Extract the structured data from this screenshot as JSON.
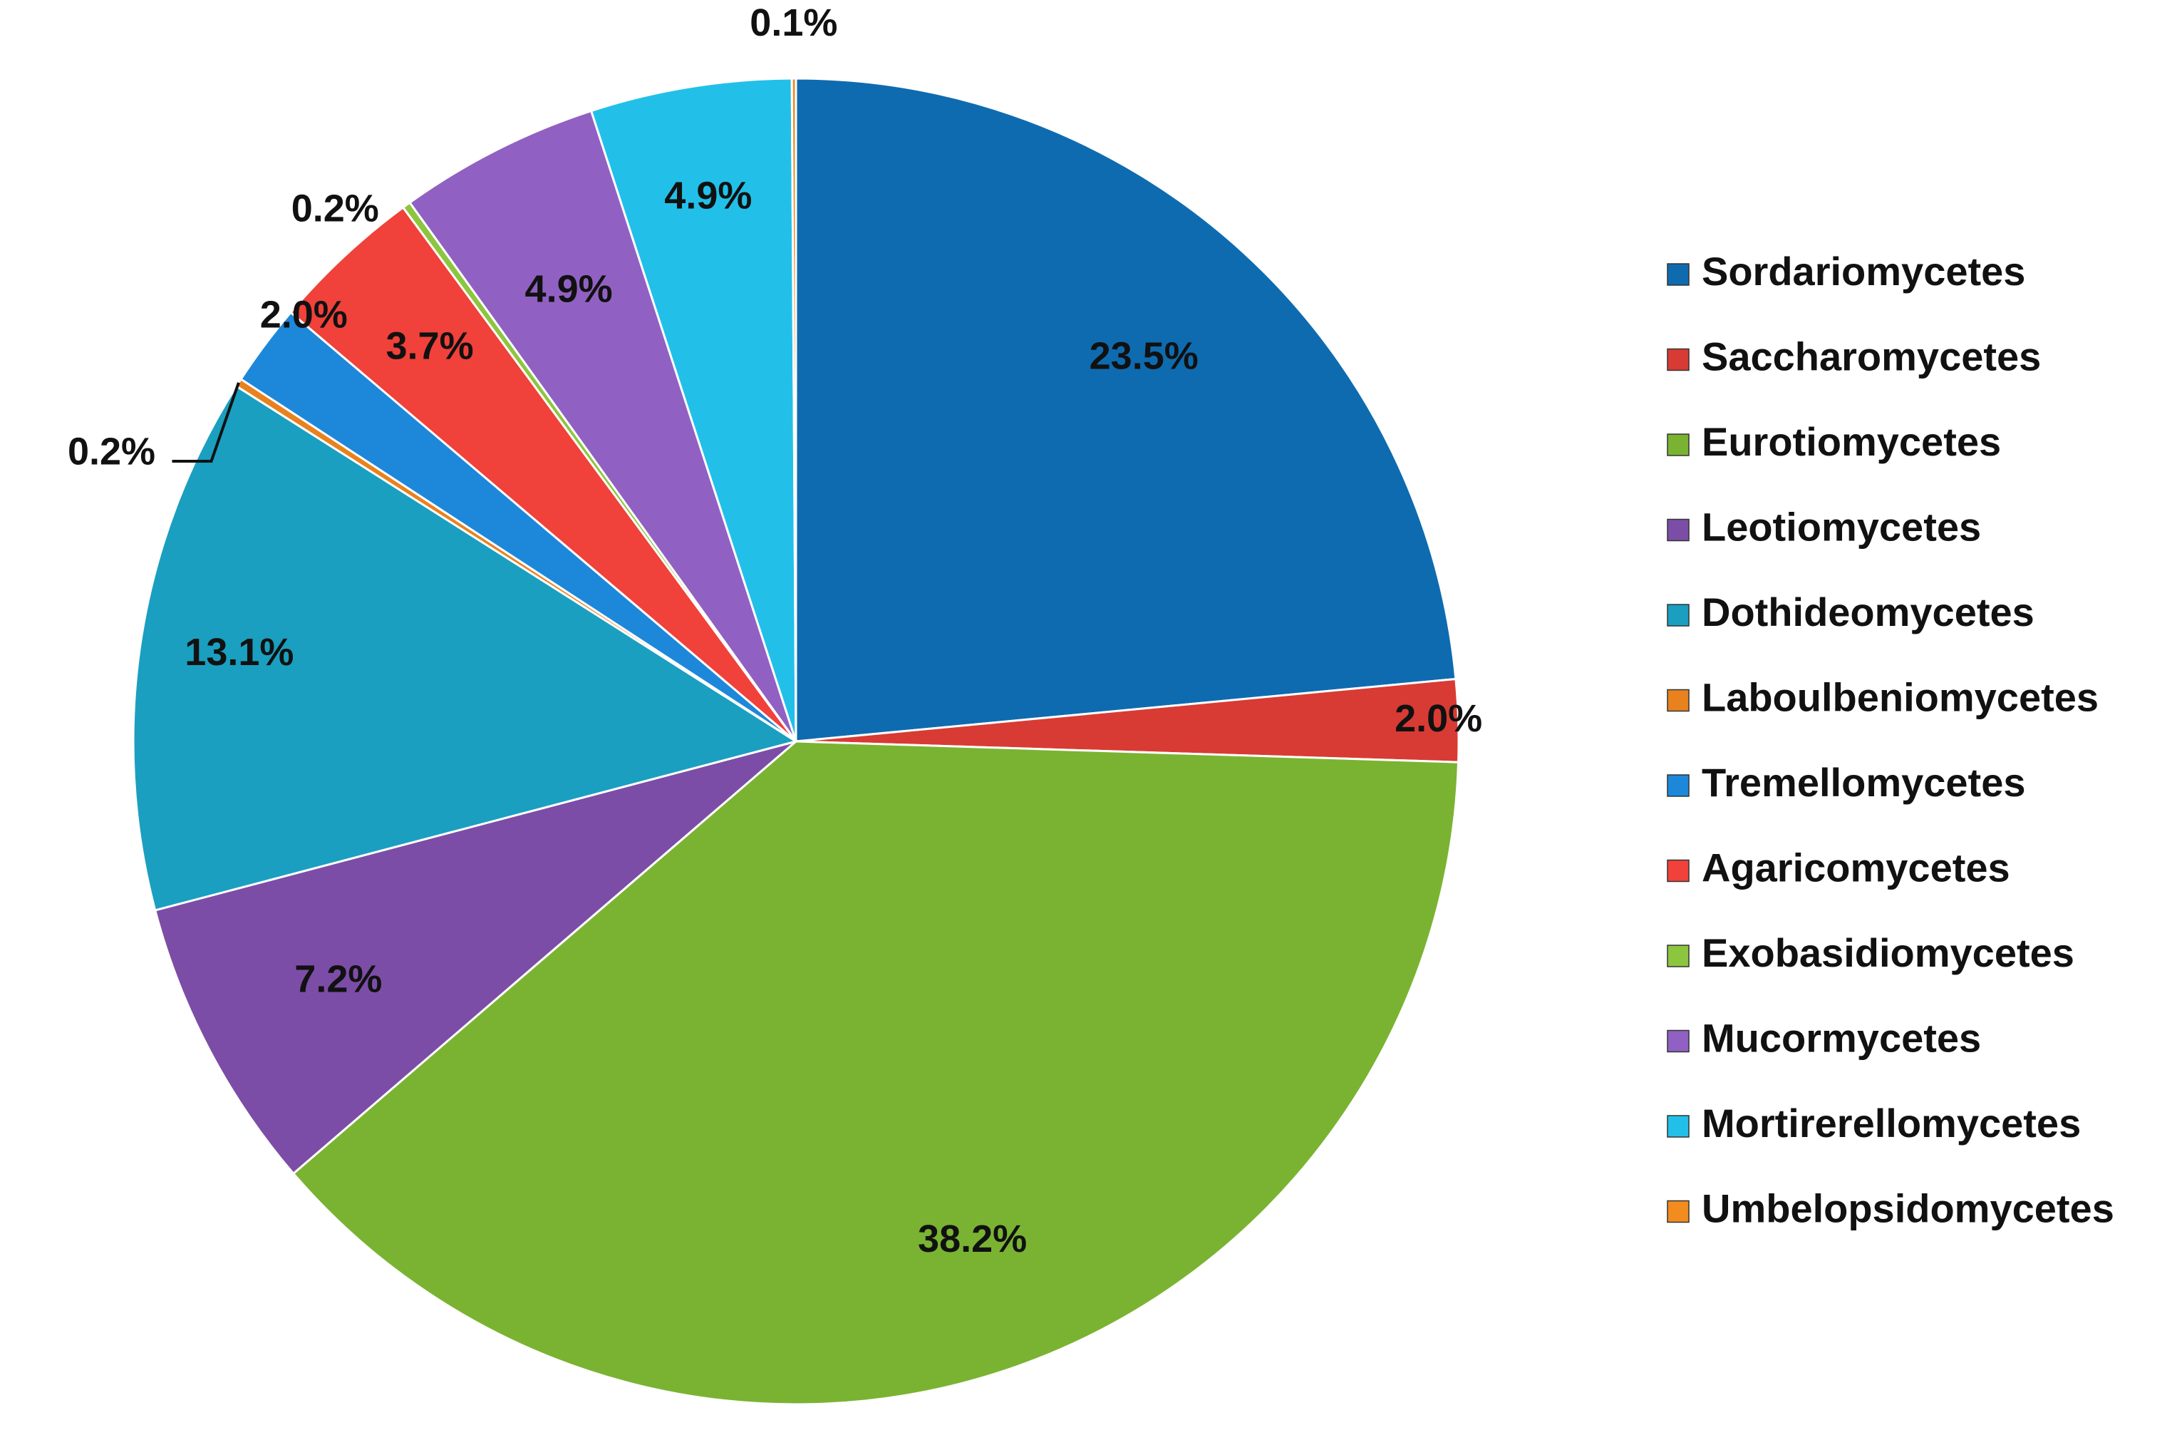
{
  "chart_data": {
    "type": "pie",
    "title": "",
    "start_angle_deg": 0,
    "direction": "clockwise",
    "legend_position": "right",
    "slices": [
      {
        "name": "Sordariomycetes",
        "value": 23.5,
        "label": "23.5%",
        "color": "#0E6BB0"
      },
      {
        "name": "Saccharomycetes",
        "value": 2.0,
        "label": "2.0%",
        "color": "#D83B33"
      },
      {
        "name": "Eurotiomycetes",
        "value": 38.2,
        "label": "38.2%",
        "color": "#7AB332"
      },
      {
        "name": "Leotiomycetes",
        "value": 7.2,
        "label": "7.2%",
        "color": "#7C4DA6"
      },
      {
        "name": "Dothideomycetes",
        "value": 13.1,
        "label": "13.1%",
        "color": "#1A9FC0"
      },
      {
        "name": "Laboulbeniomycetes",
        "value": 0.2,
        "label": "0.2%",
        "color": "#E8821E"
      },
      {
        "name": "Tremellomycetes",
        "value": 2.0,
        "label": "2.0%",
        "color": "#1D88DA"
      },
      {
        "name": "Agaricomycetes",
        "value": 3.7,
        "label": "3.7%",
        "color": "#F0413A"
      },
      {
        "name": "Exobasidiomycetes",
        "value": 0.2,
        "label": "0.2%",
        "color": "#8CC63F"
      },
      {
        "name": "Mucormycetes",
        "value": 4.9,
        "label": "4.9%",
        "color": "#9061C2"
      },
      {
        "name": "Mortirerellomycetes",
        "value": 4.9,
        "label": "4.9%",
        "color": "#22C0E8"
      },
      {
        "name": "Umbelopsidomycetes",
        "value": 0.1,
        "label": "0.1%",
        "color": "#F28C1F"
      }
    ]
  }
}
